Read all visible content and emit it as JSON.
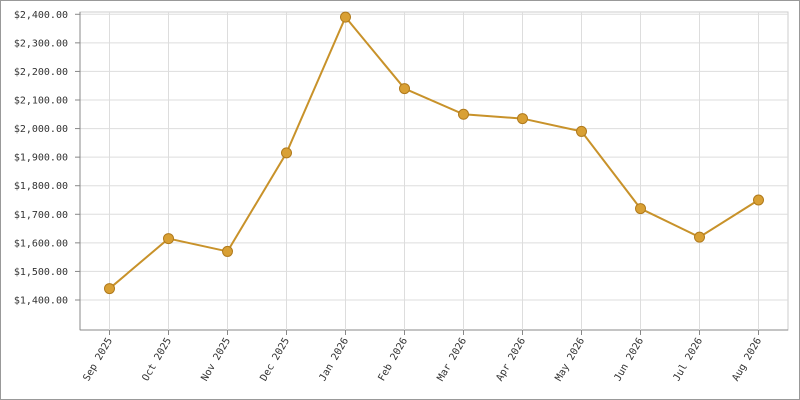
{
  "chart_data": {
    "type": "line",
    "categories": [
      "Sep 2025",
      "Oct 2025",
      "Nov 2025",
      "Dec 2025",
      "Jan 2026",
      "Feb 2026",
      "Mar 2026",
      "Apr 2026",
      "May 2026",
      "Jun 2026",
      "Jul 2026",
      "Aug 2026"
    ],
    "values": [
      1440,
      1615,
      1570,
      1915,
      2390,
      2140,
      2050,
      2035,
      1990,
      1720,
      1620,
      1750
    ],
    "color": "#c8922a",
    "marker_color": "#d9a034",
    "ylim": [
      1295,
      2408
    ],
    "yticks": [
      {
        "value": 1400,
        "label": "$1,400.00"
      },
      {
        "value": 1500,
        "label": "$1,500.00"
      },
      {
        "value": 1600,
        "label": "$1,600.00"
      },
      {
        "value": 1700,
        "label": "$1,700.00"
      },
      {
        "value": 1800,
        "label": "$1,800.00"
      },
      {
        "value": 1900,
        "label": "$1,900.00"
      },
      {
        "value": 2000,
        "label": "$2,000.00"
      },
      {
        "value": 2100,
        "label": "$2,100.00"
      },
      {
        "value": 2200,
        "label": "$2,200.00"
      },
      {
        "value": 2300,
        "label": "$2,300.00"
      },
      {
        "value": 2400,
        "label": "$2,400.00"
      }
    ],
    "grid": true
  }
}
